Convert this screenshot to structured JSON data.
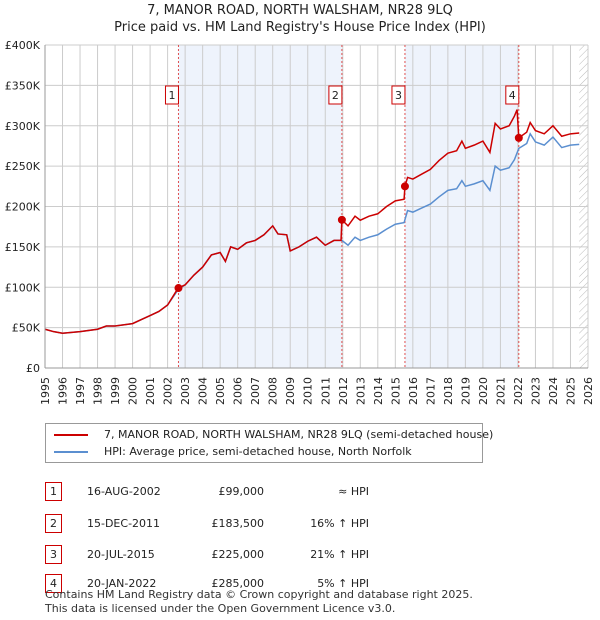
{
  "title": "7, MANOR ROAD, NORTH WALSHAM, NR28 9LQ",
  "subtitle": "Price paid vs. HM Land Registry's House Price Index (HPI)",
  "colors": {
    "property": "#cc0000",
    "hpi": "#5b8fd0",
    "shade": "#eef3fc",
    "grid": "#cccccc"
  },
  "chart_data": {
    "type": "line",
    "title": "Price paid vs. HM Land Registry's House Price Index (HPI)",
    "xlim": [
      1995,
      2026
    ],
    "ylim": [
      0,
      400000
    ],
    "yticks": [
      {
        "v": 0,
        "label": "£0"
      },
      {
        "v": 50000,
        "label": "£50K"
      },
      {
        "v": 100000,
        "label": "£100K"
      },
      {
        "v": 150000,
        "label": "£150K"
      },
      {
        "v": 200000,
        "label": "£200K"
      },
      {
        "v": 250000,
        "label": "£250K"
      },
      {
        "v": 300000,
        "label": "£300K"
      },
      {
        "v": 350000,
        "label": "£350K"
      },
      {
        "v": 400000,
        "label": "£400K"
      }
    ],
    "xticks": [
      "1995",
      "1996",
      "1997",
      "1998",
      "1999",
      "2000",
      "2001",
      "2002",
      "2003",
      "2004",
      "2005",
      "2006",
      "2007",
      "2008",
      "2009",
      "2010",
      "2011",
      "2012",
      "2013",
      "2014",
      "2015",
      "2016",
      "2017",
      "2018",
      "2019",
      "2020",
      "2021",
      "2022",
      "2023",
      "2024",
      "2025",
      "2026"
    ],
    "shaded_ranges": [
      [
        2002.62,
        2011.95
      ],
      [
        2015.55,
        2022.05
      ]
    ],
    "forecast_hatch_from": 2025.5,
    "series": [
      {
        "name": "hpi",
        "x": [
          1995,
          1995.5,
          1996,
          1997,
          1998,
          1998.5,
          1999,
          2000,
          2000.5,
          2001,
          2001.5,
          2002,
          2002.6,
          2003,
          2003.5,
          2004,
          2004.5,
          2005,
          2005.3,
          2005.6,
          2006,
          2006.5,
          2007,
          2007.5,
          2008,
          2008.3,
          2008.8,
          2009,
          2009.5,
          2010,
          2010.5,
          2011,
          2011.5,
          2011.95,
          2012.3,
          2012.7,
          2013,
          2013.5,
          2014,
          2014.5,
          2015,
          2015.5,
          2015.7,
          2016,
          2016.5,
          2017,
          2017.5,
          2018,
          2018.5,
          2018.8,
          2019,
          2019.5,
          2020,
          2020.4,
          2020.7,
          2021,
          2021.5,
          2021.8,
          2022.05,
          2022.5,
          2022.7,
          2023,
          2023.5,
          2024,
          2024.5,
          2025,
          2025.5
        ],
        "y": [
          48000,
          45000,
          43000,
          45000,
          48000,
          52000,
          52000,
          55000,
          60000,
          65000,
          70000,
          78000,
          97000,
          103000,
          115000,
          125000,
          140000,
          143000,
          132000,
          150000,
          147000,
          155000,
          158000,
          165000,
          176000,
          166000,
          165000,
          145000,
          150000,
          157000,
          162000,
          152000,
          158000,
          158000,
          152000,
          162000,
          158000,
          162000,
          165000,
          172000,
          178000,
          180000,
          195000,
          193000,
          198000,
          203000,
          212000,
          220000,
          222000,
          232000,
          225000,
          228000,
          232000,
          220000,
          250000,
          245000,
          248000,
          258000,
          272000,
          278000,
          290000,
          280000,
          276000,
          286000,
          273000,
          276000,
          277000
        ]
      },
      {
        "name": "property",
        "x": [
          1995,
          1995.5,
          1996,
          1997,
          1998,
          1998.5,
          1999,
          2000,
          2000.5,
          2001,
          2001.5,
          2002,
          2002.6,
          2003,
          2003.5,
          2004,
          2004.5,
          2005,
          2005.3,
          2005.6,
          2006,
          2006.5,
          2007,
          2007.5,
          2008,
          2008.3,
          2008.8,
          2009,
          2009.5,
          2010,
          2010.5,
          2011,
          2011.5,
          2011.9,
          2011.95,
          2012.3,
          2012.7,
          2013,
          2013.5,
          2014,
          2014.5,
          2015,
          2015.5,
          2015.55,
          2015.7,
          2016,
          2016.5,
          2017,
          2017.5,
          2018,
          2018.5,
          2018.8,
          2019,
          2019.5,
          2020,
          2020.4,
          2020.7,
          2021,
          2021.5,
          2021.8,
          2021.95,
          2022.05,
          2022.5,
          2022.7,
          2023,
          2023.5,
          2024,
          2024.5,
          2025,
          2025.5
        ],
        "y": [
          48000,
          45000,
          43000,
          45000,
          48000,
          52000,
          52000,
          55000,
          60000,
          65000,
          70000,
          78000,
          99000,
          103000,
          115000,
          125000,
          140000,
          143000,
          132000,
          150000,
          147000,
          155000,
          158000,
          165000,
          176000,
          166000,
          165000,
          145000,
          150000,
          157000,
          162000,
          152000,
          158000,
          158000,
          183500,
          176000,
          188000,
          183000,
          188000,
          191000,
          200000,
          207000,
          209000,
          225000,
          236000,
          234000,
          240000,
          246000,
          257000,
          266000,
          269000,
          281000,
          272000,
          276000,
          281000,
          267000,
          303000,
          296000,
          300000,
          312000,
          320000,
          285000,
          292000,
          304000,
          294000,
          290000,
          300000,
          287000,
          290000,
          291000
        ]
      }
    ],
    "sales": [
      {
        "n": "1",
        "x": 2002.62,
        "y": 99000
      },
      {
        "n": "2",
        "x": 2011.95,
        "y": 183500
      },
      {
        "n": "3",
        "x": 2015.55,
        "y": 225000
      },
      {
        "n": "4",
        "x": 2022.05,
        "y": 285000
      }
    ]
  },
  "legend": {
    "property": "7, MANOR ROAD, NORTH WALSHAM, NR28 9LQ (semi-detached house)",
    "hpi": "HPI: Average price, semi-detached house, North Norfolk"
  },
  "transactions": [
    {
      "n": "1",
      "date": "16-AUG-2002",
      "price": "£99,000",
      "hpi": "≈ HPI"
    },
    {
      "n": "2",
      "date": "15-DEC-2011",
      "price": "£183,500",
      "hpi": "16% ↑ HPI"
    },
    {
      "n": "3",
      "date": "20-JUL-2015",
      "price": "£225,000",
      "hpi": "21% ↑ HPI"
    },
    {
      "n": "4",
      "date": "20-JAN-2022",
      "price": "£285,000",
      "hpi": "5% ↑ HPI"
    }
  ],
  "footer": [
    "Contains HM Land Registry data © Crown copyright and database right 2025.",
    "This data is licensed under the Open Government Licence v3.0."
  ]
}
